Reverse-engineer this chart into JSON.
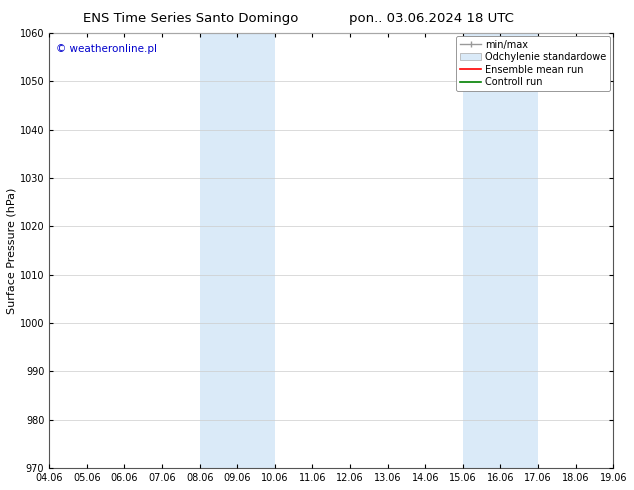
{
  "title_left": "ENS Time Series Santo Domingo",
  "title_right": "pon.. 03.06.2024 18 UTC",
  "ylabel": "Surface Pressure (hPa)",
  "xlabel_ticks": [
    "04.06",
    "05.06",
    "06.06",
    "07.06",
    "08.06",
    "09.06",
    "10.06",
    "11.06",
    "12.06",
    "13.06",
    "14.06",
    "15.06",
    "16.06",
    "17.06",
    "18.06",
    "19.06"
  ],
  "ylim": [
    970,
    1060
  ],
  "yticks": [
    970,
    980,
    990,
    1000,
    1010,
    1020,
    1030,
    1040,
    1050,
    1060
  ],
  "xlim": [
    0,
    15
  ],
  "shaded_regions": [
    {
      "x_start": 4,
      "x_end": 6,
      "color": "#daeaf8"
    },
    {
      "x_start": 11,
      "x_end": 13,
      "color": "#daeaf8"
    }
  ],
  "background_color": "#ffffff",
  "plot_bg_color": "#ffffff",
  "watermark": "© weatheronline.pl",
  "watermark_color": "#0000cc",
  "legend_items": [
    {
      "label": "min/max",
      "color": "#aaaaaa",
      "style": "line_with_caps"
    },
    {
      "label": "Odchylenie standardowe",
      "color": "#ccddee",
      "style": "filled_box"
    },
    {
      "label": "Ensemble mean run",
      "color": "#ff0000",
      "style": "line"
    },
    {
      "label": "Controll run",
      "color": "#008000",
      "style": "line"
    }
  ],
  "grid_color": "#cccccc",
  "title_fontsize": 9.5,
  "tick_fontsize": 7,
  "ylabel_fontsize": 8,
  "watermark_fontsize": 7.5,
  "legend_fontsize": 7
}
